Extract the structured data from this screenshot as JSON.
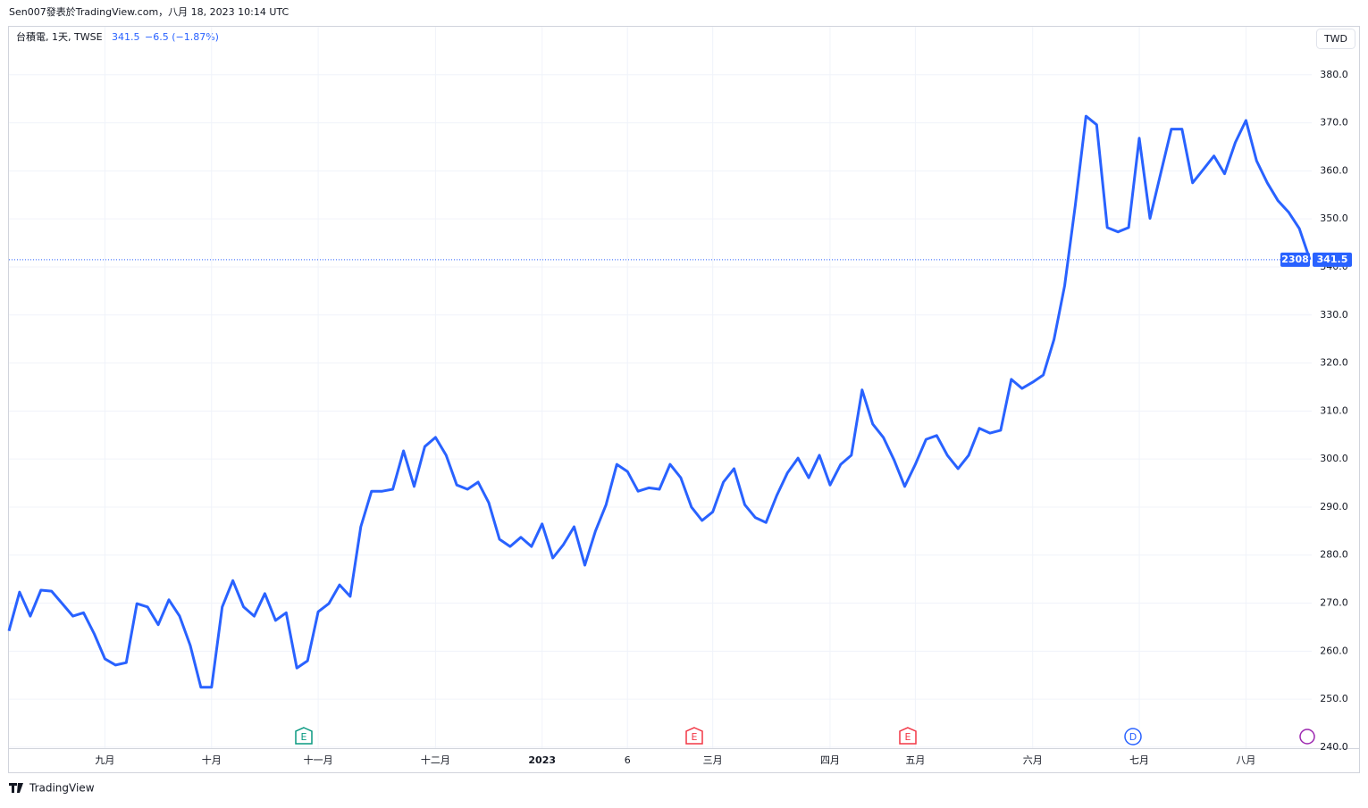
{
  "header": {
    "publisher": "Sen007發表於TradingView.com，八月 18, 2023 10:14 UTC"
  },
  "chart_data": {
    "type": "line",
    "symbol": "台積電, 1天, TWSE",
    "last_price": 341.5,
    "change": "−6.5 (−1.87%)",
    "currency": "TWD",
    "ticker": "2308",
    "color": "#2962ff",
    "grid": true,
    "categories": [
      null,
      null,
      null,
      null,
      null,
      null,
      null,
      null,
      null,
      "九月",
      null,
      null,
      null,
      null,
      null,
      null,
      null,
      null,
      null,
      "十月",
      null,
      null,
      null,
      null,
      null,
      null,
      null,
      null,
      null,
      "十一月",
      null,
      null,
      null,
      null,
      null,
      null,
      null,
      null,
      null,
      null,
      "十二月",
      null,
      null,
      null,
      null,
      null,
      null,
      null,
      null,
      null,
      "2023",
      null,
      null,
      null,
      null,
      null,
      null,
      null,
      "6",
      null,
      null,
      null,
      null,
      null,
      null,
      null,
      "三月",
      null,
      null,
      null,
      null,
      null,
      null,
      null,
      null,
      null,
      null,
      "四月",
      null,
      null,
      null,
      null,
      null,
      null,
      null,
      "五月",
      null,
      null,
      null,
      null,
      null,
      null,
      null,
      null,
      null,
      null,
      "六月",
      null,
      null,
      null,
      null,
      null,
      null,
      null,
      null,
      null,
      "七月",
      null,
      null,
      null,
      null,
      null,
      null,
      null,
      null,
      null,
      "八月",
      null,
      null,
      null,
      null,
      null,
      null
    ],
    "values": [
      264.2,
      272.3,
      267.3,
      272.7,
      272.5,
      269.9,
      267.3,
      268,
      263.6,
      258.4,
      257.1,
      257.6,
      269.9,
      269.2,
      265.5,
      270.7,
      267.3,
      261.2,
      252.5,
      252.5,
      269.2,
      274.7,
      269.2,
      267.3,
      272,
      266.4,
      268,
      256.5,
      258,
      268.2,
      269.9,
      273.8,
      271.4,
      285.9,
      293.3,
      293.3,
      293.7,
      301.7,
      294.3,
      302.6,
      304.5,
      300.8,
      294.6,
      293.7,
      295.2,
      290.9,
      283.3,
      281.8,
      283.7,
      281.8,
      286.5,
      279.4,
      282.2,
      285.9,
      277.9,
      285,
      290.5,
      298.9,
      297.4,
      293.3,
      294,
      293.7,
      298.9,
      296.1,
      290,
      287.2,
      289,
      295.2,
      298,
      290.5,
      287.8,
      286.8,
      292.4,
      297.1,
      300.2,
      296.1,
      300.8,
      294.6,
      298.9,
      300.8,
      314.4,
      307.3,
      304.5,
      299.8,
      294.3,
      298.9,
      304.1,
      304.9,
      300.8,
      298,
      300.8,
      306.4,
      305.4,
      306,
      316.6,
      314.7,
      316,
      317.5,
      324.9,
      336.1,
      352.8,
      371.4,
      369.6,
      348.2,
      347.3,
      348.2,
      366.8,
      350.1,
      359.4,
      368.7,
      368.7,
      357.5,
      360.3,
      363.1,
      359.4,
      365.9,
      370.5,
      362.1,
      357.5,
      353.8,
      351.4,
      348,
      341.5
    ],
    "ylim": [
      239.8,
      390
    ],
    "yticks": [
      {
        "value": 240,
        "label": "240.0"
      },
      {
        "value": 250,
        "label": "250.0"
      },
      {
        "value": 260,
        "label": "260.0"
      },
      {
        "value": 270,
        "label": "270.0"
      },
      {
        "value": 280,
        "label": "280.0"
      },
      {
        "value": 290,
        "label": "290.0"
      },
      {
        "value": 300,
        "label": "300.0"
      },
      {
        "value": 310,
        "label": "310.0"
      },
      {
        "value": 320,
        "label": "320.0"
      },
      {
        "value": 330,
        "label": "330.0"
      },
      {
        "value": 340,
        "label": "340.0"
      },
      {
        "value": 350,
        "label": "350.0"
      },
      {
        "value": 360,
        "label": "360.0"
      },
      {
        "value": 370,
        "label": "370.0"
      },
      {
        "value": 380,
        "label": "380.0"
      }
    ],
    "events": [
      {
        "label": "E",
        "color": "#089981"
      },
      {
        "label": "E",
        "color": "#f23645"
      },
      {
        "label": "E",
        "color": "#f23645"
      },
      {
        "label": "D",
        "color": "#2962ff"
      }
    ]
  },
  "footer": {
    "brand": "TradingView"
  }
}
